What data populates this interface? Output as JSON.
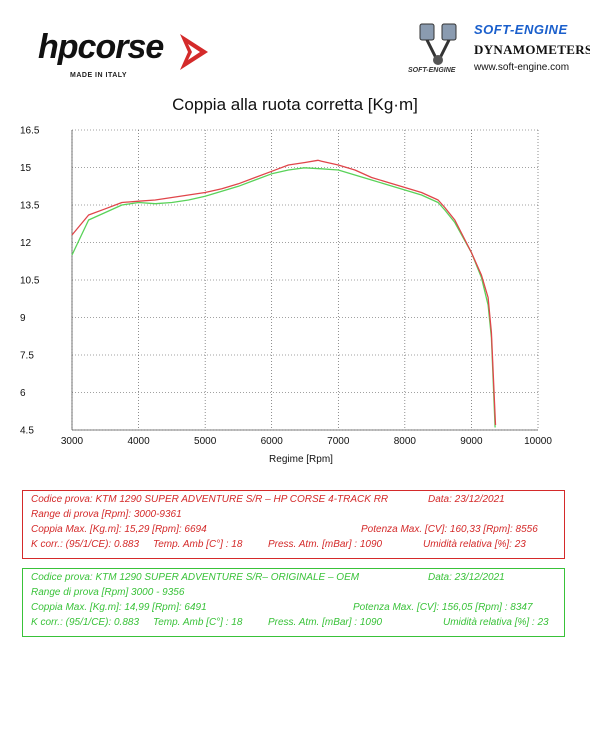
{
  "logos": {
    "hpcorse": {
      "name": "hpcorse",
      "tagline": "MADE IN ITALY"
    },
    "softengine": {
      "name": "SOFT-ENGINE",
      "tagline": "DYNAMOMETERS",
      "url": "www.soft-engine.com",
      "emblem_text": "SOFT-ENGINE"
    }
  },
  "chart_data": {
    "type": "line",
    "title": "Coppia alla ruota corretta [Kg·m]",
    "xlabel": "Regime [Rpm]",
    "ylabel": "",
    "xlim": [
      3000,
      10000
    ],
    "ylim": [
      4.5,
      16.5
    ],
    "xticks": [
      "3000",
      "4000",
      "5000",
      "6000",
      "7000",
      "8000",
      "9000",
      "10000"
    ],
    "yticks": [
      "16.5",
      "15",
      "13.5",
      "12",
      "10.5",
      "9",
      "7.5",
      "6",
      "4.5"
    ],
    "grid": true,
    "series": [
      {
        "color": "#e0454a",
        "x": [
          3000,
          3250,
          3500,
          3750,
          4000,
          4250,
          4500,
          4750,
          5000,
          5250,
          5500,
          5750,
          6000,
          6250,
          6500,
          6694,
          6750,
          7000,
          7250,
          7500,
          7750,
          8000,
          8250,
          8500,
          8600,
          8750,
          9000,
          9150,
          9250,
          9300,
          9361
        ],
        "y": [
          12.3,
          13.1,
          13.35,
          13.6,
          13.65,
          13.7,
          13.8,
          13.9,
          14.0,
          14.15,
          14.35,
          14.6,
          14.85,
          15.1,
          15.2,
          15.29,
          15.25,
          15.1,
          14.9,
          14.6,
          14.4,
          14.2,
          14.0,
          13.7,
          13.4,
          12.9,
          11.6,
          10.7,
          9.8,
          8.4,
          4.7
        ]
      },
      {
        "color": "#59d259",
        "x": [
          3000,
          3250,
          3500,
          3750,
          4000,
          4250,
          4500,
          4750,
          5000,
          5250,
          5500,
          5750,
          6000,
          6250,
          6491,
          6750,
          7000,
          7250,
          7500,
          7750,
          8000,
          8250,
          8500,
          8600,
          8750,
          9000,
          9150,
          9250,
          9300,
          9356
        ],
        "y": [
          11.5,
          12.9,
          13.2,
          13.5,
          13.6,
          13.55,
          13.6,
          13.7,
          13.85,
          14.05,
          14.25,
          14.5,
          14.75,
          14.9,
          14.99,
          14.95,
          14.9,
          14.7,
          14.5,
          14.3,
          14.1,
          13.9,
          13.6,
          13.3,
          12.8,
          11.6,
          10.6,
          9.5,
          8.2,
          4.6
        ]
      }
    ]
  },
  "red_test": {
    "codice": "Codice prova: KTM 1290  SUPER ADVENTURE S/R – HP CORSE  4-TRACK RR",
    "data": "Data: 23/12/2021",
    "range": "Range di prova [Rpm]: 3000-9361",
    "coppia": "Coppia Max. [Kg.m]:  15,29  [Rpm]:  6694",
    "potenza": "Potenza Max. [CV]:  160,33 [Rpm]: 8556",
    "kcorr": "K corr.: (95/1/CE): 0.883",
    "temp": "Temp. Amb [C°] : 18",
    "press": "Press. Atm. [mBar] : 1090",
    "umid": "Umidità relativa [%]: 23",
    "color": "#d42a2a"
  },
  "green_test": {
    "codice": "Codice prova: KTM 1290  SUPER ADVENTURE S/R– ORIGINALE – OEM",
    "data": "Data: 23/12/2021",
    "range": "Range di prova [Rpm] 3000 - 9356",
    "coppia": "Coppia Max. [Kg.m]:  14,99  [Rpm]:  6491",
    "potenza": "Potenza Max. [CV]:  156,05  [Rpm] : 8347",
    "kcorr": "K corr.: (95/1/CE): 0.883",
    "temp": "Temp. Amb [C°] : 18",
    "press": "Press. Atm. [mBar] : 1090",
    "umid": "Umidità relativa [%] : 23",
    "color": "#39c239"
  }
}
